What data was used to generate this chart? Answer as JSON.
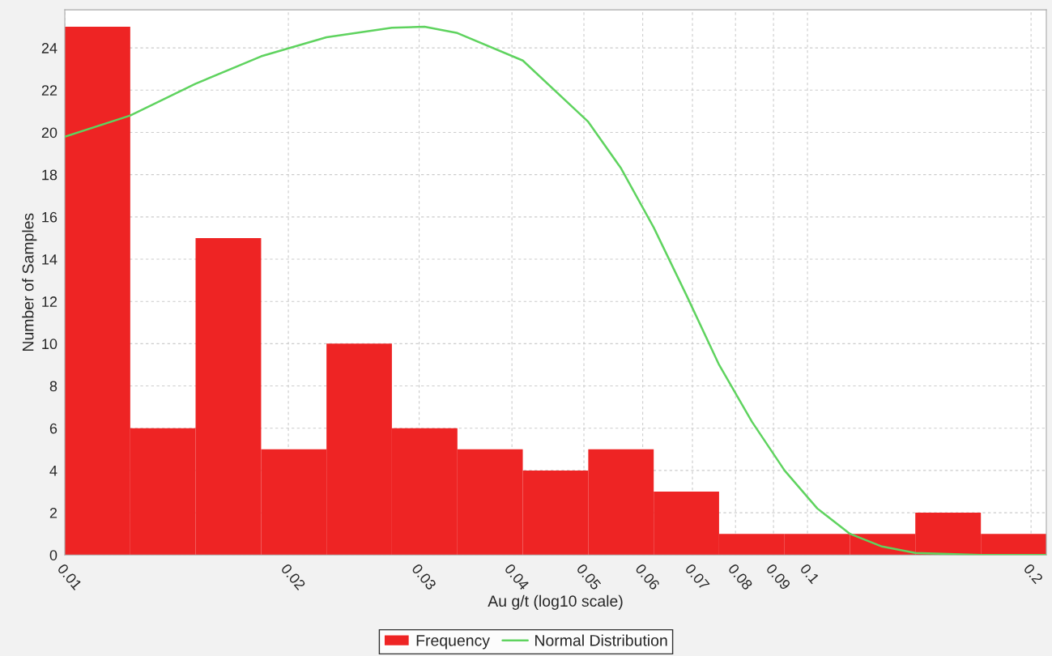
{
  "chart_data": {
    "type": "histogram",
    "xlabel": "Au g/t (log10 scale)",
    "ylabel": "Number of Samples",
    "log": "x",
    "bins": [
      0.01,
      0.01225,
      0.015,
      0.01838,
      0.02251,
      0.02757,
      0.03378,
      0.04137,
      0.05068,
      0.06208,
      0.07603,
      0.09314,
      0.1141,
      0.1397,
      0.1712,
      0.2097
    ],
    "series": [
      {
        "name": "Frequency",
        "color": "#ee2424",
        "values": [
          25,
          6,
          15,
          5,
          10,
          6,
          5,
          4,
          5,
          3,
          1,
          1,
          1,
          2,
          1
        ]
      },
      {
        "name": "Normal Distribution",
        "type": "line",
        "color": "#5fd35f",
        "x": [
          0.01,
          0.01225,
          0.015,
          0.01838,
          0.02251,
          0.02757,
          0.0305,
          0.03378,
          0.04137,
          0.05068,
          0.0561,
          0.06208,
          0.0687,
          0.07603,
          0.0842,
          0.09314,
          0.1031,
          0.1141,
          0.126,
          0.1397,
          0.1712,
          0.2097
        ],
        "values": [
          19.8,
          20.8,
          22.3,
          23.6,
          24.5,
          24.95,
          25.0,
          24.7,
          23.4,
          20.5,
          18.3,
          15.5,
          12.3,
          9,
          6.3,
          4,
          2.2,
          1.0,
          0.4,
          0.1,
          0,
          0
        ]
      }
    ],
    "xlim": [
      0.01,
      0.2097
    ],
    "ylim": [
      0,
      25.8
    ],
    "xticks": [
      0.01,
      0.02,
      0.03,
      0.04,
      0.05,
      0.06,
      0.07,
      0.08,
      0.09,
      0.1,
      0.2
    ],
    "yticks": [
      0,
      2,
      4,
      6,
      8,
      10,
      12,
      14,
      16,
      18,
      20,
      22,
      24
    ],
    "grid": true,
    "legend": "bottom"
  }
}
